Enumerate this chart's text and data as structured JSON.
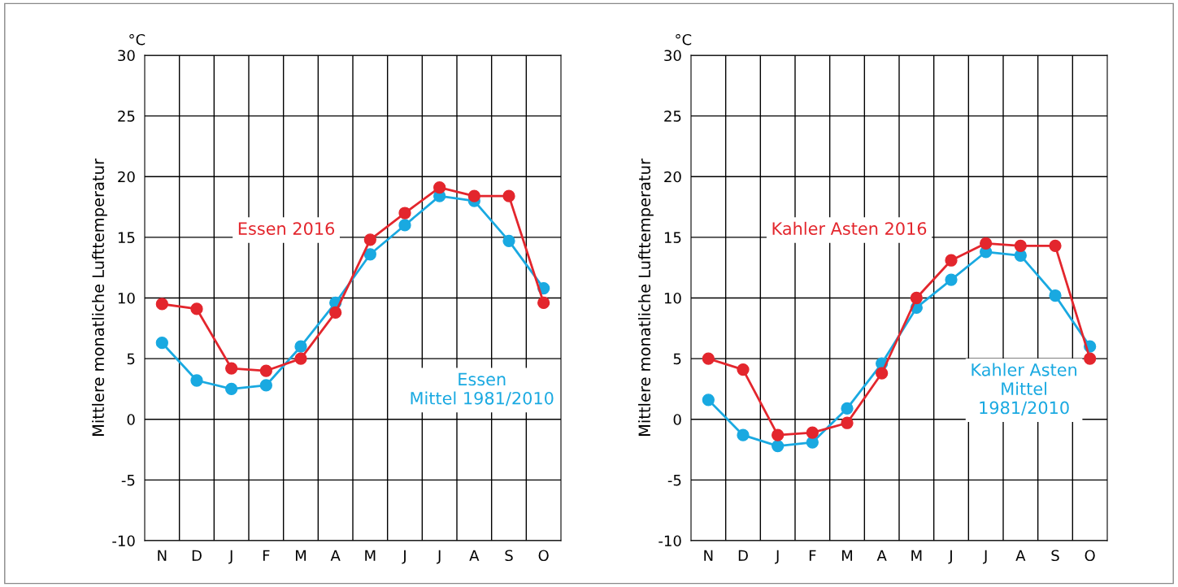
{
  "chart_data": [
    {
      "type": "line",
      "ylabel": "Mittlere monatliche Lufttemperatur",
      "annotations": [
        "°C"
      ],
      "categories": [
        "N",
        "D",
        "J",
        "F",
        "M",
        "A",
        "M",
        "J",
        "J",
        "A",
        "S",
        "O"
      ],
      "ylim": [
        -10,
        30
      ],
      "yticks": [
        -10,
        -5,
        0,
        5,
        10,
        15,
        20,
        25,
        30
      ],
      "grid": true,
      "legend": false,
      "marker": "circle",
      "line_style": "solid",
      "series": [
        {
          "name": "Essen 2016",
          "color": "#e3262d",
          "values": [
            9.5,
            9.1,
            4.2,
            4.0,
            5.0,
            8.8,
            14.8,
            17.0,
            19.1,
            18.4,
            18.4,
            9.6
          ]
        },
        {
          "name": "Essen\nMittel 1981/2010",
          "color": "#19a9e1",
          "values": [
            6.3,
            3.2,
            2.5,
            2.8,
            6.0,
            9.6,
            13.6,
            16.0,
            18.4,
            18.0,
            14.7,
            10.8
          ]
        }
      ]
    },
    {
      "type": "line",
      "ylabel": "Mittlere monatliche Lufttemperatur",
      "annotations": [
        "°C"
      ],
      "categories": [
        "N",
        "D",
        "J",
        "F",
        "M",
        "A",
        "M",
        "J",
        "J",
        "A",
        "S",
        "O"
      ],
      "ylim": [
        -10,
        30
      ],
      "yticks": [
        -10,
        -5,
        0,
        5,
        10,
        15,
        20,
        25,
        30
      ],
      "grid": true,
      "legend": false,
      "marker": "circle",
      "line_style": "solid",
      "series": [
        {
          "name": "Kahler Asten 2016",
          "color": "#e3262d",
          "values": [
            5.0,
            4.1,
            -1.3,
            -1.1,
            -0.3,
            3.8,
            10.0,
            13.1,
            14.5,
            14.3,
            14.3,
            5.0
          ]
        },
        {
          "name": "Kahler Asten\nMittel\n1981/2010",
          "color": "#19a9e1",
          "values": [
            1.6,
            -1.3,
            -2.2,
            -1.9,
            0.9,
            4.6,
            9.2,
            11.5,
            13.8,
            13.5,
            10.2,
            6.0
          ]
        }
      ]
    }
  ]
}
